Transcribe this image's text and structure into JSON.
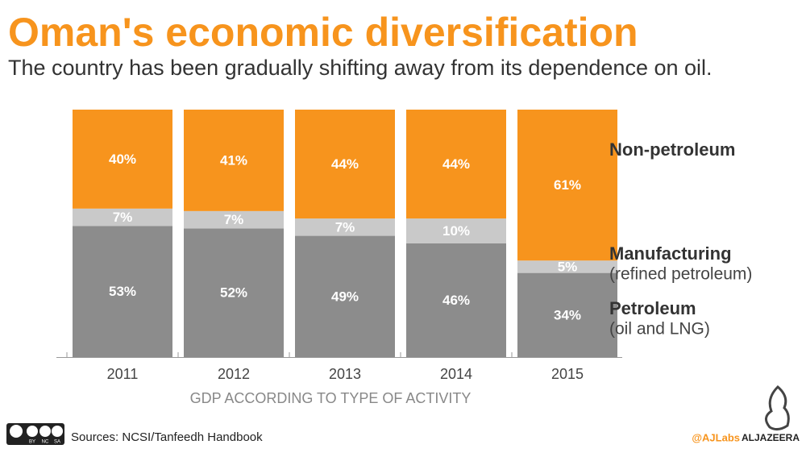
{
  "chart_data": {
    "type": "stacked_bar",
    "title": "Oman's economic diversification",
    "subtitle": "The country has been gradually shifting away from its dependence on oil.",
    "x_label": "GDP ACCORDING TO TYPE OF ACTIVITY",
    "categories": [
      "2011",
      "2012",
      "2013",
      "2014",
      "2015"
    ],
    "series": [
      {
        "name": "Petroleum",
        "sublabel": "(oil and LNG)",
        "color": "#8c8c8c",
        "values": [
          53,
          52,
          49,
          46,
          34
        ],
        "value_labels": [
          "53%",
          "52%",
          "49%",
          "46%",
          "34%"
        ]
      },
      {
        "name": "Manufacturing",
        "sublabel": "(refined petroleum)",
        "color": "#c9c9c9",
        "values": [
          7,
          7,
          7,
          10,
          5
        ],
        "value_labels": [
          "7%",
          "7%",
          "7%",
          "10%",
          "5%"
        ]
      },
      {
        "name": "Non-petroleum",
        "color": "#f7941d",
        "values": [
          40,
          41,
          44,
          44,
          61
        ],
        "value_labels": [
          "40%",
          "41%",
          "44%",
          "44%",
          "61%"
        ]
      }
    ],
    "ylim": [
      0,
      100
    ],
    "source": "Sources: NCSI/Tanfeedh Handbook",
    "license": [
      "BY",
      "NC",
      "SA"
    ],
    "credit": "@AJLabs",
    "brand": "ALJAZEERA"
  }
}
